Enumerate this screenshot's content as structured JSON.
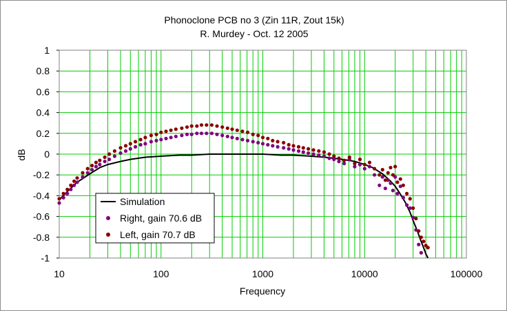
{
  "chart_data": {
    "type": "scatter",
    "title": "Phonoclone PCB no 3 (Zin 11R,  Zout 15k)",
    "subtitle": "R. Murdey - Oct. 12 2005",
    "xlabel": "Frequency",
    "ylabel": "dB",
    "xscale": "log",
    "xlim": [
      10,
      100000
    ],
    "ylim": [
      -1,
      1
    ],
    "grid": true,
    "legend_position": "bottom-left",
    "x_tick_labels": [
      "10",
      "100",
      "1000",
      "10000",
      "100000"
    ],
    "y_tick_labels": [
      "1",
      "0.8",
      "0.6",
      "0.4",
      "0.2",
      "0",
      "-0.2",
      "-0.4",
      "-0.6",
      "-0.8",
      "-1"
    ],
    "x_ticks": [
      10,
      100,
      1000,
      10000,
      100000
    ],
    "y_ticks": [
      1,
      0.8,
      0.6,
      0.4,
      0.2,
      0,
      -0.2,
      -0.4,
      -0.6,
      -0.8,
      -1
    ],
    "colors": {
      "plot_bg": "#ffffff",
      "grid": "#00cc00",
      "simulation": "#000000",
      "right": "#800080",
      "left": "#8b0000"
    },
    "series": [
      {
        "name": "Simulation",
        "kind": "line",
        "color": "#000000",
        "x": [
          10,
          12,
          15,
          20,
          25,
          30,
          40,
          50,
          70,
          100,
          150,
          200,
          300,
          500,
          700,
          1000,
          1500,
          2000,
          3000,
          4000,
          5000,
          6000,
          7000,
          8000,
          10000,
          12000,
          15000,
          18000,
          20000,
          22000,
          25000,
          28000,
          30000,
          33000,
          35000,
          38000,
          40000,
          42000
        ],
        "y": [
          -0.44,
          -0.36,
          -0.27,
          -0.19,
          -0.13,
          -0.1,
          -0.07,
          -0.05,
          -0.03,
          -0.02,
          -0.01,
          -0.01,
          0,
          0,
          0,
          0,
          -0.01,
          -0.01,
          -0.02,
          -0.03,
          -0.04,
          -0.05,
          -0.06,
          -0.07,
          -0.1,
          -0.13,
          -0.19,
          -0.26,
          -0.31,
          -0.37,
          -0.46,
          -0.56,
          -0.64,
          -0.74,
          -0.81,
          -0.9,
          -0.96,
          -1.0
        ]
      },
      {
        "name": "Right, gain 70.6 dB",
        "kind": "markers",
        "color": "#800080",
        "x": [
          10,
          11,
          12,
          13,
          14,
          15,
          17,
          19,
          21,
          23,
          25,
          28,
          31,
          35,
          40,
          45,
          50,
          56,
          63,
          70,
          80,
          90,
          100,
          112,
          125,
          140,
          160,
          180,
          200,
          225,
          250,
          280,
          315,
          355,
          400,
          450,
          500,
          560,
          630,
          710,
          800,
          900,
          1000,
          1120,
          1250,
          1400,
          1600,
          1800,
          2000,
          2250,
          2500,
          2800,
          3150,
          3550,
          4000,
          4500,
          5000,
          5600,
          6300,
          7100,
          8000,
          9000,
          10000,
          11200,
          12500,
          14000,
          15000,
          16000,
          17000,
          18000,
          19000,
          20000,
          21000,
          22500,
          24000,
          26000,
          28000,
          30000,
          32000,
          34000,
          36000
        ],
        "y": [
          -0.47,
          -0.42,
          -0.38,
          -0.34,
          -0.3,
          -0.27,
          -0.22,
          -0.18,
          -0.15,
          -0.12,
          -0.1,
          -0.07,
          -0.05,
          -0.02,
          0.01,
          0.03,
          0.05,
          0.07,
          0.09,
          0.1,
          0.12,
          0.13,
          0.14,
          0.15,
          0.16,
          0.17,
          0.18,
          0.19,
          0.19,
          0.2,
          0.2,
          0.2,
          0.2,
          0.19,
          0.18,
          0.17,
          0.16,
          0.15,
          0.14,
          0.13,
          0.12,
          0.11,
          0.1,
          0.09,
          0.08,
          0.07,
          0.06,
          0.05,
          0.04,
          0.03,
          0.02,
          0.01,
          0.0,
          -0.01,
          -0.02,
          -0.04,
          -0.05,
          -0.07,
          -0.09,
          -0.05,
          -0.12,
          -0.1,
          -0.14,
          -0.12,
          -0.2,
          -0.3,
          -0.22,
          -0.33,
          -0.25,
          -0.28,
          -0.35,
          -0.22,
          -0.38,
          -0.31,
          -0.42,
          -0.49,
          -0.52,
          -0.61,
          -0.73,
          -0.87,
          -0.95
        ]
      },
      {
        "name": "Left, gain 70.7 dB",
        "kind": "markers",
        "color": "#8b0000",
        "x": [
          10,
          11,
          12,
          13,
          14,
          15,
          17,
          19,
          21,
          23,
          25,
          28,
          31,
          35,
          40,
          45,
          50,
          56,
          63,
          70,
          80,
          90,
          100,
          112,
          125,
          140,
          160,
          180,
          200,
          225,
          250,
          280,
          315,
          355,
          400,
          450,
          500,
          560,
          630,
          710,
          800,
          900,
          1000,
          1120,
          1250,
          1400,
          1600,
          1800,
          2000,
          2250,
          2500,
          2800,
          3150,
          3550,
          4000,
          4500,
          5000,
          5600,
          6300,
          7100,
          8000,
          9000,
          10000,
          11200,
          12500,
          14000,
          15000,
          16000,
          17000,
          18000,
          19000,
          20000,
          21000,
          22500,
          24000,
          26000,
          28000,
          30000,
          32000,
          34000,
          36000,
          38000,
          40000,
          42000
        ],
        "y": [
          -0.43,
          -0.38,
          -0.34,
          -0.3,
          -0.26,
          -0.23,
          -0.18,
          -0.14,
          -0.11,
          -0.08,
          -0.06,
          -0.03,
          0.0,
          0.03,
          0.06,
          0.08,
          0.1,
          0.12,
          0.14,
          0.16,
          0.18,
          0.19,
          0.21,
          0.22,
          0.23,
          0.24,
          0.25,
          0.26,
          0.27,
          0.27,
          0.28,
          0.28,
          0.28,
          0.27,
          0.26,
          0.25,
          0.24,
          0.23,
          0.22,
          0.21,
          0.19,
          0.18,
          0.16,
          0.15,
          0.13,
          0.12,
          0.11,
          0.09,
          0.08,
          0.07,
          0.06,
          0.05,
          0.04,
          0.03,
          0.02,
          0.0,
          -0.02,
          -0.04,
          -0.06,
          -0.03,
          -0.09,
          -0.05,
          -0.1,
          -0.08,
          -0.14,
          -0.2,
          -0.15,
          -0.25,
          -0.18,
          -0.13,
          -0.2,
          -0.12,
          -0.27,
          -0.24,
          -0.3,
          -0.38,
          -0.43,
          -0.52,
          -0.62,
          -0.74,
          -0.8,
          -0.84,
          -0.88,
          -0.9
        ]
      }
    ],
    "legend": [
      "Simulation",
      "Right, gain 70.6 dB",
      "Left, gain 70.7 dB"
    ]
  }
}
